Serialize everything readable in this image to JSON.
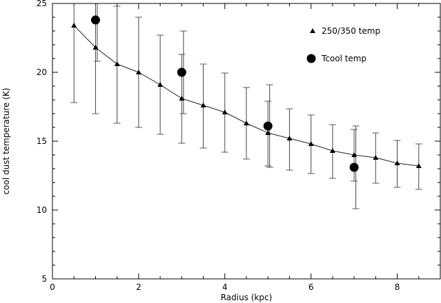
{
  "chart_data": {
    "type": "scatter",
    "title": "",
    "xlabel": "Radius (kpc)",
    "ylabel": "cool dust temperature (K)",
    "xlim": [
      0,
      9
    ],
    "ylim": [
      5,
      25
    ],
    "xticks": [
      "0",
      "2",
      "4",
      "6",
      "8"
    ],
    "yticks": [
      "5",
      "10",
      "15",
      "20",
      "25"
    ],
    "legend_position": "top-right",
    "series": [
      {
        "name": "250/350 temp",
        "marker": "triangle",
        "line": true,
        "x": [
          0.5,
          1.0,
          1.5,
          2.0,
          2.5,
          3.0,
          3.5,
          4.0,
          4.5,
          5.0,
          5.5,
          6.0,
          6.5,
          7.0,
          7.5,
          8.0,
          8.5
        ],
        "y": [
          23.4,
          21.8,
          20.6,
          20.0,
          19.1,
          18.1,
          17.6,
          17.1,
          16.3,
          15.6,
          15.2,
          14.8,
          14.3,
          14.0,
          13.8,
          13.4,
          13.2
        ],
        "y_low": [
          17.8,
          17.0,
          16.3,
          16.0,
          15.5,
          14.85,
          14.5,
          14.2,
          13.7,
          13.2,
          12.9,
          12.65,
          12.3,
          12.1,
          11.95,
          11.65,
          11.5
        ],
        "y_high": [
          26.0,
          26.0,
          24.8,
          24.0,
          22.7,
          21.3,
          20.6,
          19.95,
          18.9,
          17.9,
          17.35,
          16.9,
          16.2,
          15.85,
          15.6,
          15.05,
          14.8
        ]
      },
      {
        "name": "Tcool temp",
        "marker": "circle",
        "line": false,
        "x": [
          1.0,
          3.0,
          5.0,
          7.0
        ],
        "y": [
          23.8,
          20.0,
          16.1,
          13.1
        ],
        "y_low": [
          20.8,
          17.0,
          13.1,
          10.1
        ],
        "y_high": [
          26.8,
          23.0,
          19.1,
          16.1
        ]
      }
    ]
  }
}
